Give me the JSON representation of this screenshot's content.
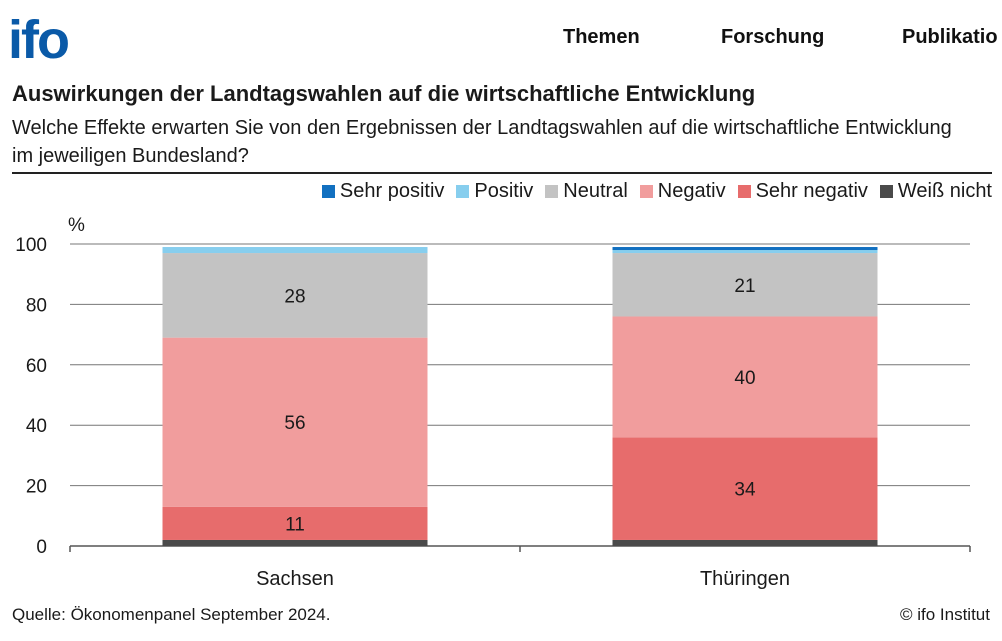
{
  "header": {
    "logo_text": "ifo",
    "nav": [
      {
        "label": "Themen"
      },
      {
        "label": "Forschung"
      },
      {
        "label": "Publikatio"
      }
    ]
  },
  "colors": {
    "logo": "#0a5aa8",
    "grid": "#777777",
    "axis": "#555555",
    "text": "#1a1a1a"
  },
  "chart_data": {
    "type": "bar",
    "stacked": true,
    "title": "Auswirkungen der Landtagswahlen auf die wirtschaftliche Entwicklung",
    "subtitle": "Welche Effekte erwarten Sie von den Ergebnissen der Landtagswahlen auf die wirtschaftliche Entwicklung im jeweiligen Bundesland?",
    "ylabel": "%",
    "ylim": [
      0,
      100
    ],
    "yticks": [
      0,
      20,
      40,
      60,
      80,
      100
    ],
    "grid": true,
    "legend_position": "top-right",
    "categories": [
      "Sachsen",
      "Thüringen"
    ],
    "series": [
      {
        "name": "Weiß nicht",
        "color": "#4a4a4a",
        "values": [
          2,
          2
        ],
        "show_label": false
      },
      {
        "name": "Sehr negativ",
        "color": "#e76c6c",
        "values": [
          11,
          34
        ],
        "show_label": true
      },
      {
        "name": "Negativ",
        "color": "#f19d9d",
        "values": [
          56,
          40
        ],
        "show_label": true
      },
      {
        "name": "Neutral",
        "color": "#c3c3c3",
        "values": [
          28,
          21
        ],
        "show_label": true
      },
      {
        "name": "Positiv",
        "color": "#87ceee",
        "values": [
          2,
          1
        ],
        "show_label": false
      },
      {
        "name": "Sehr positiv",
        "color": "#1270c0",
        "values": [
          0,
          1
        ],
        "show_label": false
      }
    ],
    "legend_order": [
      "Sehr positiv",
      "Positiv",
      "Neutral",
      "Negativ",
      "Sehr negativ",
      "Weiß nicht"
    ],
    "source": "Quelle: Ökonomenpanel September 2024.",
    "copyright": "© ifo Institut"
  }
}
